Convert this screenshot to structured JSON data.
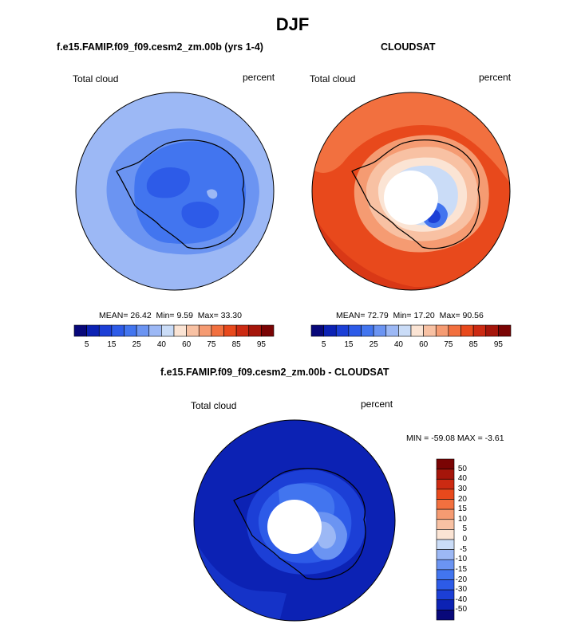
{
  "figure_title": "DJF",
  "chart_data": [
    {
      "type": "heatmap",
      "projection": "south-polar-stereographic",
      "title": "f.e15.FAMIP.f09_f09.cesm2_zm.00b (yrs 1-4)",
      "field": "Total cloud",
      "units": "percent",
      "mean": "26.42",
      "min": "9.59",
      "max": "33.30",
      "mean_label": "MEAN=",
      "min_label": "Min=",
      "max_label": "Max=",
      "colorbar_levels": [
        5,
        10,
        15,
        20,
        25,
        30,
        40,
        50,
        60,
        70,
        75,
        80,
        85,
        90,
        95
      ],
      "colorbar_tick_labels": [
        "5",
        "15",
        "25",
        "40",
        "60",
        "75",
        "85",
        "95"
      ]
    },
    {
      "type": "heatmap",
      "projection": "south-polar-stereographic",
      "title": "CLOUDSAT",
      "field": "Total cloud",
      "units": "percent",
      "mean": "72.79",
      "min": "17.20",
      "max": "90.56",
      "mean_label": "MEAN=",
      "min_label": "Min=",
      "max_label": "Max=",
      "colorbar_levels": [
        5,
        10,
        15,
        20,
        25,
        30,
        40,
        50,
        60,
        70,
        75,
        80,
        85,
        90,
        95
      ],
      "colorbar_tick_labels": [
        "5",
        "15",
        "25",
        "40",
        "60",
        "75",
        "85",
        "95"
      ]
    },
    {
      "type": "heatmap",
      "projection": "south-polar-stereographic",
      "title": "f.e15.FAMIP.f09_f09.cesm2_zm.00b - CLOUDSAT",
      "field": "Total cloud",
      "units": "percent",
      "minmax_text": "MIN = -59.08 MAX =  -3.61",
      "min": -59.08,
      "max": -3.61,
      "colorbar_levels": [
        -50,
        -40,
        -30,
        -20,
        -15,
        -10,
        -5,
        0,
        5,
        10,
        15,
        20,
        30,
        40,
        50
      ],
      "colorbar_tick_labels": [
        "50",
        "40",
        "30",
        "20",
        "15",
        "10",
        "5",
        "0",
        "-5",
        "-10",
        "-15",
        "-20",
        "-30",
        "-40",
        "-50"
      ]
    }
  ],
  "colors": {
    "cmap": [
      "#08087a",
      "#0c22b4",
      "#1c3fd6",
      "#2d5be8",
      "#4275ef",
      "#6b94f2",
      "#9cb8f5",
      "#cadcf7",
      "#fbe4d4",
      "#f8c1a3",
      "#f59b72",
      "#f2703f",
      "#e8491c",
      "#cc2a12",
      "#a5150a",
      "#7a0404"
    ],
    "diff_cmap": [
      "#7a0404",
      "#a5150a",
      "#cc2a12",
      "#e8491c",
      "#f2703f",
      "#f59b72",
      "#f8c1a3",
      "#fbe4d4",
      "#cadcf7",
      "#9cb8f5",
      "#6b94f2",
      "#4275ef",
      "#2d5be8",
      "#1c3fd6",
      "#0c22b4",
      "#08087a"
    ]
  }
}
